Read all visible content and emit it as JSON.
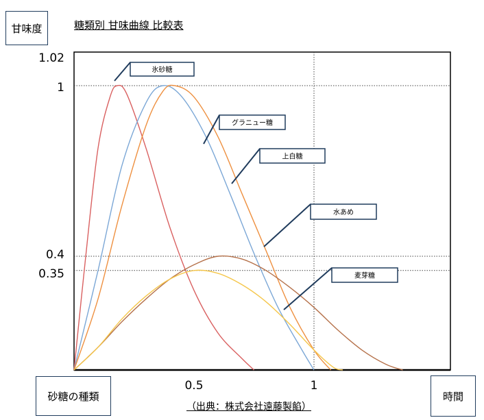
{
  "ylabel": "甘味度",
  "xlabel": "時間",
  "legend_label": "砂糖の種類",
  "title": "糖類別 甘味曲線 比較表",
  "source": "（出典：株式会社遠藤製餡）",
  "chart_data": {
    "type": "line",
    "title": "糖類別 甘味曲線 比較表",
    "xlabel": "時間",
    "ylabel": "甘味度",
    "xlim": [
      0,
      1.6
    ],
    "ylim": [
      0,
      1.02
    ],
    "x_ticks": [
      0.5,
      1
    ],
    "y_ticks": [
      1.02,
      1,
      0.4,
      0.35
    ],
    "grid": "dotted reference lines at y=1, y=0.4, y=0.35 and x=1",
    "series": [
      {
        "name": "氷砂糖",
        "color": "#d96060",
        "points": [
          [
            0,
            0
          ],
          [
            0.05,
            0.41
          ],
          [
            0.1,
            0.78
          ],
          [
            0.15,
            0.96
          ],
          [
            0.18,
            1.0
          ],
          [
            0.22,
            0.97
          ],
          [
            0.3,
            0.78
          ],
          [
            0.4,
            0.5
          ],
          [
            0.5,
            0.28
          ],
          [
            0.6,
            0.13
          ],
          [
            0.7,
            0.04
          ],
          [
            0.75,
            0.0
          ]
        ]
      },
      {
        "name": "グラニュー糖",
        "color": "#7ba7d6",
        "points": [
          [
            0,
            0
          ],
          [
            0.1,
            0.35
          ],
          [
            0.2,
            0.72
          ],
          [
            0.3,
            0.94
          ],
          [
            0.37,
            1.0
          ],
          [
            0.45,
            0.96
          ],
          [
            0.55,
            0.82
          ],
          [
            0.65,
            0.62
          ],
          [
            0.75,
            0.41
          ],
          [
            0.85,
            0.22
          ],
          [
            0.95,
            0.07
          ],
          [
            1.0,
            0.0
          ]
        ]
      },
      {
        "name": "上白糖",
        "color": "#ee9040",
        "points": [
          [
            0,
            0
          ],
          [
            0.1,
            0.25
          ],
          [
            0.2,
            0.58
          ],
          [
            0.3,
            0.86
          ],
          [
            0.37,
            0.98
          ],
          [
            0.42,
            1.0
          ],
          [
            0.5,
            0.96
          ],
          [
            0.6,
            0.82
          ],
          [
            0.7,
            0.62
          ],
          [
            0.8,
            0.42
          ],
          [
            0.9,
            0.22
          ],
          [
            1.0,
            0.07
          ],
          [
            1.07,
            0.0
          ]
        ]
      },
      {
        "name": "水あめ",
        "color": "#b5714a",
        "points": [
          [
            0,
            0
          ],
          [
            0.1,
            0.08
          ],
          [
            0.2,
            0.17
          ],
          [
            0.3,
            0.25
          ],
          [
            0.4,
            0.32
          ],
          [
            0.5,
            0.37
          ],
          [
            0.6,
            0.4
          ],
          [
            0.7,
            0.39
          ],
          [
            0.8,
            0.35
          ],
          [
            0.9,
            0.29
          ],
          [
            1.0,
            0.22
          ],
          [
            1.1,
            0.14
          ],
          [
            1.2,
            0.07
          ],
          [
            1.3,
            0.02
          ],
          [
            1.37,
            0.0
          ]
        ]
      },
      {
        "name": "麦芽糖",
        "color": "#f5c64a",
        "points": [
          [
            0,
            0
          ],
          [
            0.1,
            0.08
          ],
          [
            0.2,
            0.18
          ],
          [
            0.3,
            0.26
          ],
          [
            0.4,
            0.32
          ],
          [
            0.5,
            0.35
          ],
          [
            0.6,
            0.34
          ],
          [
            0.7,
            0.3
          ],
          [
            0.8,
            0.24
          ],
          [
            0.9,
            0.16
          ],
          [
            1.0,
            0.07
          ],
          [
            1.08,
            0.01
          ],
          [
            1.12,
            0.0
          ]
        ]
      }
    ],
    "callouts": [
      {
        "series": "氷砂糖",
        "text": "氷砂糖"
      },
      {
        "series": "グラニュー糖",
        "text": "グラニュー糖"
      },
      {
        "series": "上白糖",
        "text": "上白糖"
      },
      {
        "series": "水あめ",
        "text": "水あめ"
      },
      {
        "series": "麦芽糖",
        "text": "麦芽糖"
      }
    ]
  }
}
